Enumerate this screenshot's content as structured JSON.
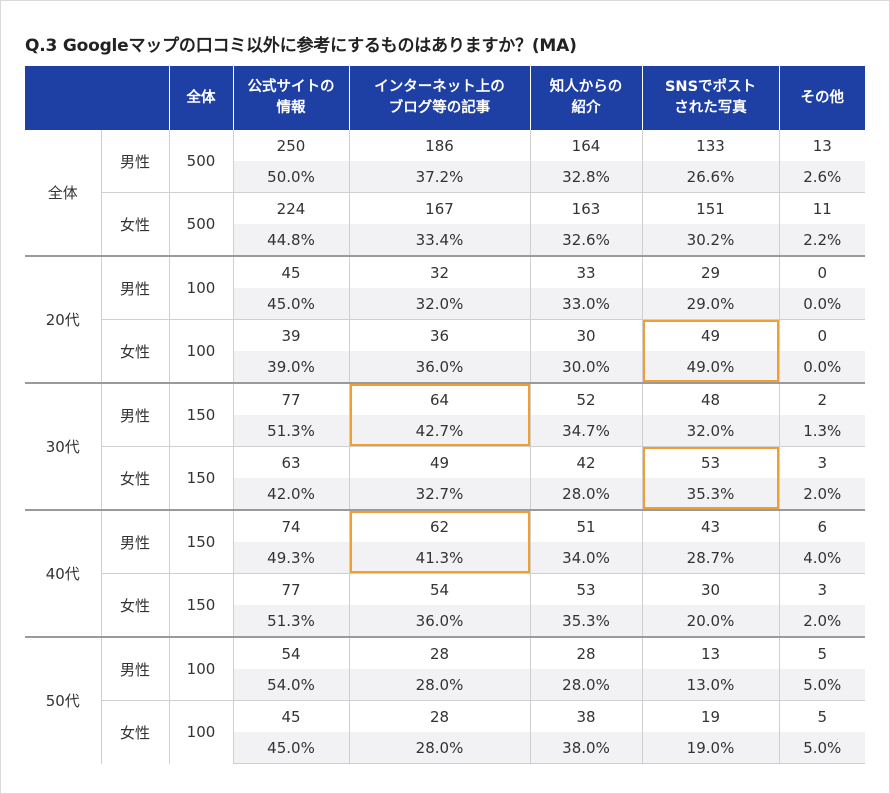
{
  "title": "Q.3 Googleマップの口コミ以外に参考にするものはありますか？(MA)",
  "header": {
    "blank": "",
    "total": "全体",
    "cols": [
      [
        "公式サイトの",
        "情報"
      ],
      [
        "インターネット上の",
        "ブログ等の記事"
      ],
      [
        "知人からの",
        "紹介"
      ],
      [
        "SNSでポスト",
        "された写真"
      ],
      [
        "その他"
      ]
    ]
  },
  "colors": {
    "header_bg": "#1e3fa3",
    "highlight": "#f0a030",
    "pct_row_bg": "#f2f2f4"
  },
  "chart_data": {
    "type": "table",
    "title": "Q.3 Googleマップの口コミ以外に参考にするものはありますか？(MA)",
    "columns": [
      "公式サイトの情報",
      "インターネット上のブログ等の記事",
      "知人からの紹介",
      "SNSでポストされた写真",
      "その他"
    ],
    "groups": [
      {
        "group": "全体",
        "rows": [
          {
            "gender": "男性",
            "n": "500",
            "counts": [
              "250",
              "186",
              "164",
              "133",
              "13"
            ],
            "pcts": [
              "50.0%",
              "37.2%",
              "32.8%",
              "26.6%",
              "2.6%"
            ],
            "highlight": []
          },
          {
            "gender": "女性",
            "n": "500",
            "counts": [
              "224",
              "167",
              "163",
              "151",
              "11"
            ],
            "pcts": [
              "44.8%",
              "33.4%",
              "32.6%",
              "30.2%",
              "2.2%"
            ],
            "highlight": []
          }
        ]
      },
      {
        "group": "20代",
        "rows": [
          {
            "gender": "男性",
            "n": "100",
            "counts": [
              "45",
              "32",
              "33",
              "29",
              "0"
            ],
            "pcts": [
              "45.0%",
              "32.0%",
              "33.0%",
              "29.0%",
              "0.0%"
            ],
            "highlight": []
          },
          {
            "gender": "女性",
            "n": "100",
            "counts": [
              "39",
              "36",
              "30",
              "49",
              "0"
            ],
            "pcts": [
              "39.0%",
              "36.0%",
              "30.0%",
              "49.0%",
              "0.0%"
            ],
            "highlight": [
              3
            ]
          }
        ]
      },
      {
        "group": "30代",
        "rows": [
          {
            "gender": "男性",
            "n": "150",
            "counts": [
              "77",
              "64",
              "52",
              "48",
              "2"
            ],
            "pcts": [
              "51.3%",
              "42.7%",
              "34.7%",
              "32.0%",
              "1.3%"
            ],
            "highlight": [
              1
            ]
          },
          {
            "gender": "女性",
            "n": "150",
            "counts": [
              "63",
              "49",
              "42",
              "53",
              "3"
            ],
            "pcts": [
              "42.0%",
              "32.7%",
              "28.0%",
              "35.3%",
              "2.0%"
            ],
            "highlight": [
              3
            ]
          }
        ]
      },
      {
        "group": "40代",
        "rows": [
          {
            "gender": "男性",
            "n": "150",
            "counts": [
              "74",
              "62",
              "51",
              "43",
              "6"
            ],
            "pcts": [
              "49.3%",
              "41.3%",
              "34.0%",
              "28.7%",
              "4.0%"
            ],
            "highlight": [
              1
            ]
          },
          {
            "gender": "女性",
            "n": "150",
            "counts": [
              "77",
              "54",
              "53",
              "30",
              "3"
            ],
            "pcts": [
              "51.3%",
              "36.0%",
              "35.3%",
              "20.0%",
              "2.0%"
            ],
            "highlight": []
          }
        ]
      },
      {
        "group": "50代",
        "rows": [
          {
            "gender": "男性",
            "n": "100",
            "counts": [
              "54",
              "28",
              "28",
              "13",
              "5"
            ],
            "pcts": [
              "54.0%",
              "28.0%",
              "28.0%",
              "13.0%",
              "5.0%"
            ],
            "highlight": []
          },
          {
            "gender": "女性",
            "n": "100",
            "counts": [
              "45",
              "28",
              "38",
              "19",
              "5"
            ],
            "pcts": [
              "45.0%",
              "28.0%",
              "38.0%",
              "19.0%",
              "5.0%"
            ],
            "highlight": []
          }
        ]
      }
    ]
  }
}
